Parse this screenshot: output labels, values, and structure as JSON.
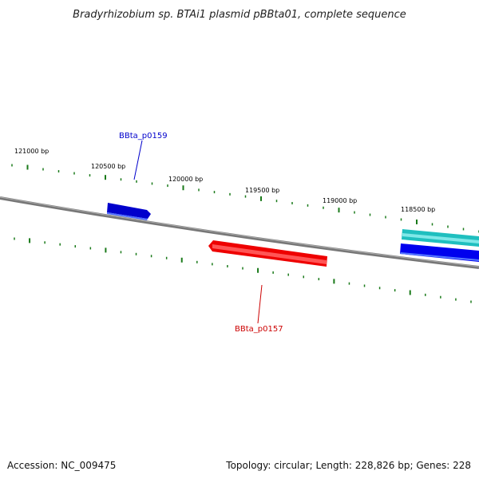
{
  "title": "Bradyrhizobium sp. BTAi1 plasmid pBBta01, complete sequence",
  "footer": {
    "accession": "Accession: NC_009475",
    "summary": "Topology: circular; Length: 228,826 bp; Genes: 228"
  },
  "scale_labels": [
    "121000 bp",
    "120500 bp",
    "120000 bp",
    "119500 bp",
    "119000 bp",
    "118500 bp"
  ],
  "genes": [
    {
      "label": "BBta_p0159",
      "strand": "forward",
      "color": "#0000cc",
      "label_color": "#0000cc"
    },
    {
      "label": "BBta_p0157",
      "strand": "reverse",
      "color": "#ee0000",
      "label_color": "#cc0000"
    }
  ],
  "other_features": [
    {
      "strand": "forward",
      "color": "#1fbfbf"
    },
    {
      "strand": "forward",
      "color": "#0000ee"
    }
  ],
  "colors": {
    "backbone": "#777777",
    "ticks": "#1a7a1a"
  }
}
